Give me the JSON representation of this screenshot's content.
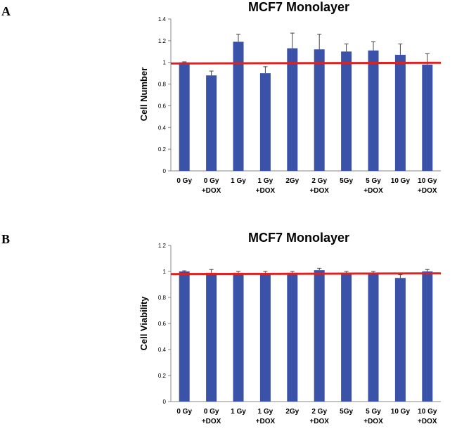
{
  "chart_data": [
    {
      "type": "bar",
      "panel_label": "A",
      "title": "MCF7 Monolayer",
      "ylabel": "Cell Number",
      "xlabel": "",
      "ylim": [
        0,
        1.4
      ],
      "yticks": [
        "0",
        "0.2",
        "0.4",
        "0.6",
        "0.8",
        "1",
        "1.2",
        "1.4"
      ],
      "categories": [
        [
          "0 Gy"
        ],
        [
          "0 Gy",
          "+DOX"
        ],
        [
          "1 Gy"
        ],
        [
          "1 Gy",
          "+DOX"
        ],
        [
          "2Gy"
        ],
        [
          "2 Gy",
          "+DOX"
        ],
        [
          "5Gy"
        ],
        [
          "5 Gy",
          "+DOX"
        ],
        [
          "10 Gy"
        ],
        [
          "10 Gy",
          "+DOX"
        ]
      ],
      "values": [
        1.0,
        0.88,
        1.19,
        0.9,
        1.13,
        1.12,
        1.1,
        1.11,
        1.07,
        0.98
      ],
      "errors": [
        0.005,
        0.04,
        0.07,
        0.06,
        0.14,
        0.14,
        0.07,
        0.08,
        0.1,
        0.1
      ],
      "reference_line": 0.99,
      "bar_color": "#3a52a8",
      "line_color": "#dd2222",
      "grid": false
    },
    {
      "type": "bar",
      "panel_label": "B",
      "title": "MCF7 Monolayer",
      "ylabel": "Cell Viability",
      "xlabel": "",
      "ylim": [
        0,
        1.2
      ],
      "yticks": [
        "0",
        "0.2",
        "0.4",
        "0.6",
        "0.8",
        "1",
        "1.2"
      ],
      "categories": [
        [
          "0 Gy"
        ],
        [
          "0 Gy",
          "+DOX"
        ],
        [
          "1 Gy"
        ],
        [
          "1 Gy",
          "+DOX"
        ],
        [
          "2Gy"
        ],
        [
          "2 Gy",
          "+DOX"
        ],
        [
          "5Gy"
        ],
        [
          "5 Gy",
          "+DOX"
        ],
        [
          "10 Gy"
        ],
        [
          "10 Gy",
          "+DOX"
        ]
      ],
      "values": [
        1.0,
        0.99,
        0.99,
        0.98,
        0.99,
        1.01,
        0.98,
        0.99,
        0.95,
        1.0
      ],
      "errors": [
        0.005,
        0.025,
        0.01,
        0.02,
        0.01,
        0.015,
        0.02,
        0.01,
        0.025,
        0.015
      ],
      "reference_line": 0.98,
      "bar_color": "#3a52a8",
      "line_color": "#dd2222",
      "grid": false
    }
  ]
}
